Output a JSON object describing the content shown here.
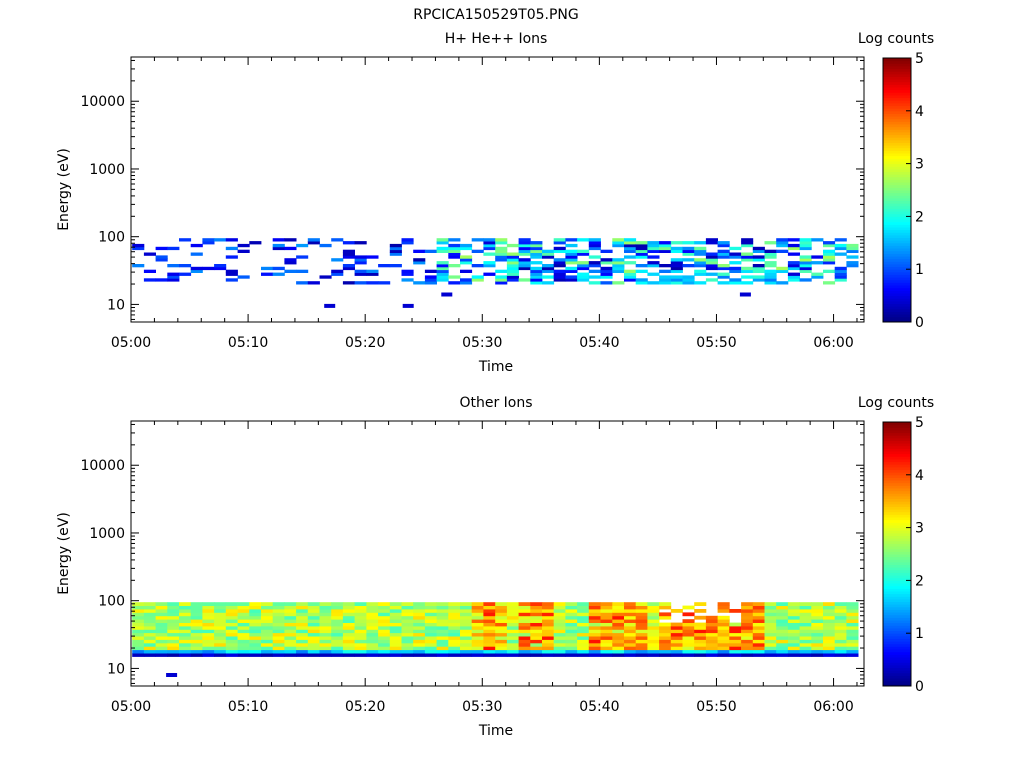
{
  "figure_title": "RPCICA150529T05.PNG",
  "chart_data": [
    {
      "type": "heatmap",
      "title": "H+ He++ Ions",
      "xlabel": "Time",
      "ylabel": "Energy (eV)",
      "x_ticks": [
        "05:00",
        "05:10",
        "05:20",
        "05:30",
        "05:40",
        "05:50",
        "06:00"
      ],
      "y_ticks": [
        "10",
        "100",
        "1000",
        "10000"
      ],
      "y_scale": "log",
      "ylim": [
        5.5,
        45000
      ],
      "colorbar": {
        "label": "Log counts",
        "ticks": [
          "0",
          "1",
          "2",
          "3",
          "4",
          "5"
        ],
        "range": [
          0,
          5
        ],
        "colormap": "jet"
      },
      "profile": {
        "energy_low_ev": 20,
        "energy_high_ev": 95,
        "sparse_before_minute": 26,
        "peak_log_counts": 2.5,
        "isolated_points": [
          [
            16.5,
            9.5
          ],
          [
            23.2,
            9.5
          ],
          [
            26.5,
            14
          ],
          [
            52,
            14
          ]
        ]
      }
    },
    {
      "type": "heatmap",
      "title": "Other Ions",
      "xlabel": "Time",
      "ylabel": "Energy (eV)",
      "x_ticks": [
        "05:00",
        "05:10",
        "05:20",
        "05:30",
        "05:40",
        "05:50",
        "06:00"
      ],
      "y_ticks": [
        "10",
        "100",
        "1000",
        "10000"
      ],
      "y_scale": "log",
      "ylim": [
        5.5,
        45000
      ],
      "colorbar": {
        "label": "Log counts",
        "ticks": [
          "0",
          "1",
          "2",
          "3",
          "4",
          "5"
        ],
        "range": [
          0,
          5
        ],
        "colormap": "jet"
      },
      "profile": {
        "energy_low_ev": 15,
        "energy_high_ev": 95,
        "peak_log_counts": 4.3,
        "peak_minutes": [
          30,
          34,
          40,
          42,
          46,
          48,
          50,
          52
        ],
        "isolated_points": [
          [
            3,
            8
          ]
        ]
      }
    }
  ]
}
